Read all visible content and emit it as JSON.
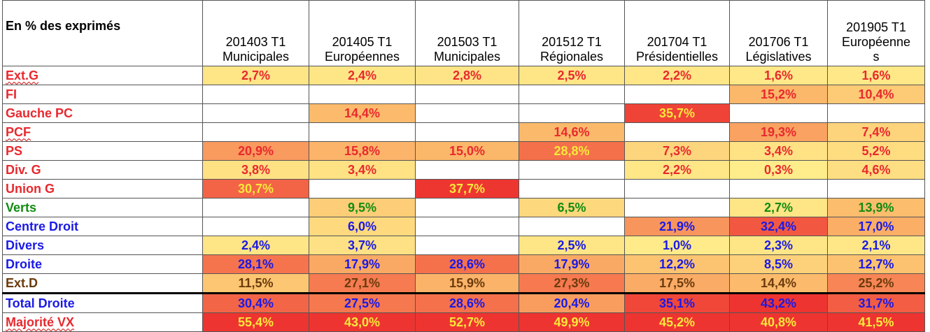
{
  "header_label": "En % des exprimés",
  "columns": [
    {
      "code": "201403 T1",
      "name": "Municipales"
    },
    {
      "code": "201405 T1",
      "name": "Européennes"
    },
    {
      "code": "201503 T1",
      "name": "Municipales"
    },
    {
      "code": "201512 T1",
      "name": "Régionales"
    },
    {
      "code": "201704 T1",
      "name": "Présidentielles"
    },
    {
      "code": "201706 T1",
      "name": "Législatives"
    },
    {
      "code": "201905 T1",
      "name": "Européenne",
      "name2": "s"
    }
  ],
  "colors": {
    "left": "#e8292e",
    "ecology": "#128c12",
    "right": "#1a1ae6",
    "far_right": "#6b3b0c",
    "highlight_text": "#f7e93a"
  },
  "rows": [
    {
      "label": "Ext.G",
      "group": "left",
      "wavy": true,
      "cells": [
        "2,7%",
        "2,4%",
        "2,8%",
        "2,5%",
        "2,2%",
        "1,6%",
        "1,6%"
      ]
    },
    {
      "label": "FI",
      "group": "left",
      "cells": [
        "",
        "",
        "",
        "",
        "",
        "15,2%",
        "10,4%"
      ]
    },
    {
      "label": "Gauche PC",
      "group": "left",
      "cells": [
        "",
        "14,4%",
        "",
        "",
        "35,7%",
        "",
        ""
      ]
    },
    {
      "label": "PCF",
      "group": "left",
      "wavy": true,
      "cells": [
        "",
        "",
        "",
        "14,6%",
        "",
        "19,3%",
        "7,4%"
      ]
    },
    {
      "label": "PS",
      "group": "left",
      "cells": [
        "20,9%",
        "15,8%",
        "15,0%",
        "28,8%",
        "7,3%",
        "3,4%",
        "5,2%"
      ]
    },
    {
      "label": "Div. G",
      "group": "left",
      "cells": [
        "3,8%",
        "3,4%",
        "",
        "",
        "2,2%",
        "0,3%",
        "4,6%"
      ]
    },
    {
      "label": "Union G",
      "group": "left",
      "cells": [
        "30,7%",
        "",
        "37,7%",
        "",
        "",
        "",
        ""
      ]
    },
    {
      "label": "Verts",
      "group": "ecology",
      "cells": [
        "",
        "9,5%",
        "",
        "6,5%",
        "",
        "2,7%",
        "13,9%"
      ]
    },
    {
      "label": "Centre Droit",
      "group": "right",
      "cells": [
        "",
        "6,0%",
        "",
        "",
        "21,9%",
        "32,4%",
        "17,0%"
      ]
    },
    {
      "label": "Divers",
      "group": "right",
      "cells": [
        "2,4%",
        "3,7%",
        "",
        "2,5%",
        "1,0%",
        "2,3%",
        "2,1%"
      ]
    },
    {
      "label": "Droite",
      "group": "right",
      "cells": [
        "28,1%",
        "17,9%",
        "28,6%",
        "17,9%",
        "12,2%",
        "8,5%",
        "12,7%"
      ]
    },
    {
      "label": "Ext.D",
      "group": "far_right",
      "cells": [
        "11,5%",
        "27,1%",
        "15,9%",
        "27,3%",
        "17,5%",
        "14,4%",
        "25,2%"
      ]
    },
    {
      "label": "Total Droite",
      "group": "right",
      "total": true,
      "cells": [
        "30,4%",
        "27,5%",
        "28,6%",
        "20,4%",
        "35,1%",
        "43,2%",
        "31,7%"
      ]
    },
    {
      "label": "Majorité VX",
      "group": "left",
      "wavy": true,
      "cells": [
        "55,4%",
        "43,0%",
        "52,7%",
        "49,9%",
        "45,2%",
        "40,8%",
        "41,5%"
      ]
    }
  ]
}
